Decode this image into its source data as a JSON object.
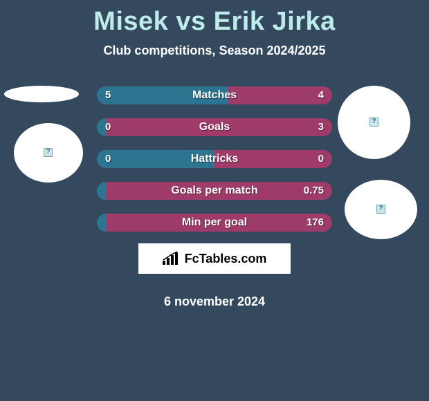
{
  "title": "Misek vs Erik Jirka",
  "subtitle": "Club competitions, Season 2024/2025",
  "date": "6 november 2024",
  "colors": {
    "page_bg": "#34495e",
    "title_color": "#bdecea",
    "text_white": "#ffffff",
    "bar_left": "#2c7490",
    "bar_right": "#9f3b68"
  },
  "brand": {
    "text": "FcTables.com"
  },
  "rows": [
    {
      "label": "Matches",
      "left": "5",
      "right": "4",
      "left_pct": 55.6
    },
    {
      "label": "Goals",
      "left": "0",
      "right": "3",
      "left_pct": 4
    },
    {
      "label": "Hattricks",
      "left": "0",
      "right": "0",
      "left_pct": 50
    },
    {
      "label": "Goals per match",
      "left": "",
      "right": "0.75",
      "left_pct": 4
    },
    {
      "label": "Min per goal",
      "left": "",
      "right": "176",
      "left_pct": 4
    }
  ]
}
